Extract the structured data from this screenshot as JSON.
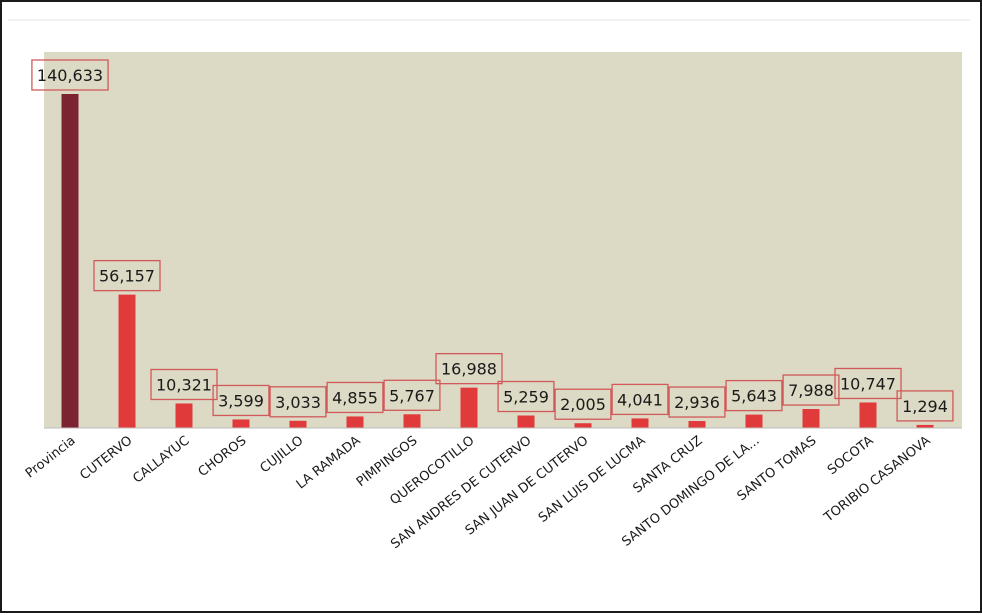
{
  "chart_data": {
    "type": "bar",
    "title": "",
    "xlabel": "",
    "ylabel": "",
    "ylim": [
      0,
      155000
    ],
    "grid": false,
    "legend": "none",
    "categories": [
      "Provincia",
      "CUTERVO",
      "CALLAYUC",
      "CHOROS",
      "CUJILLO",
      "LA RAMADA",
      "PIMPINGOS",
      "QUEROCOTILLO",
      "SAN ANDRES DE CUTERVO",
      "SAN JUAN DE CUTERVO",
      "SAN LUIS DE LUCMA",
      "SANTA CRUZ",
      "SANTO DOMINGO DE LA...",
      "SANTO TOMAS",
      "SOCOTA",
      "TORIBIO CASANOVA"
    ],
    "values": [
      140633,
      56157,
      10321,
      3599,
      3033,
      4855,
      5767,
      16988,
      5259,
      2005,
      4041,
      2936,
      5643,
      7988,
      10747,
      1294
    ],
    "value_labels": [
      "140,633",
      "56,157",
      "10,321",
      "3,599",
      "3,033",
      "4,855",
      "5,767",
      "16,988",
      "5,259",
      "2,005",
      "4,041",
      "2,936",
      "5,643",
      "7,988",
      "10,747",
      "1,294"
    ],
    "colors": {
      "plot_background": "#dcd9c4",
      "first_bar": "#7b2330",
      "bar": "#e03a3a",
      "label_border": "#d05a5a"
    }
  }
}
